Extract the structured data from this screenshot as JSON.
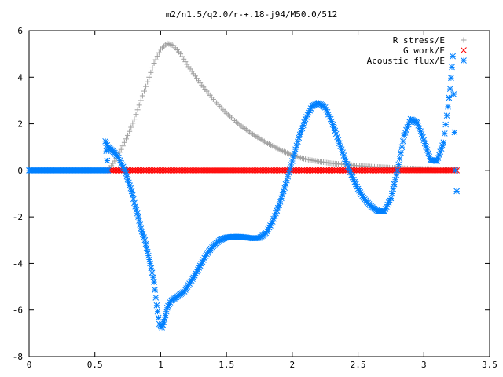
{
  "chart_data": {
    "type": "scatter",
    "title": "m2/n1.5/q2.0/r-+.18-j94/M50.0/512",
    "xlabel": "",
    "ylabel": "",
    "xlim": [
      0,
      3.5
    ],
    "ylim": [
      -8,
      6
    ],
    "xticks": [
      0,
      0.5,
      1,
      1.5,
      2,
      2.5,
      3,
      3.5
    ],
    "xtick_labels": [
      "0",
      "0.5",
      "1",
      "1.5",
      "2",
      "2.5",
      "3",
      "3.5"
    ],
    "yticks": [
      -8,
      -6,
      -4,
      -2,
      0,
      2,
      4,
      6
    ],
    "ytick_labels": [
      "-8",
      "-6",
      "-4",
      "-2",
      "0",
      "2",
      "4",
      "6"
    ],
    "grid": false,
    "legend_position": "top-right",
    "series": [
      {
        "name": "R stress/E",
        "marker": "plus",
        "color": "#a0a0a0",
        "x_range": [
          0.6,
          3.25
        ],
        "points": [
          [
            0.6,
            0.0
          ],
          [
            0.65,
            0.4
          ],
          [
            0.7,
            0.9
          ],
          [
            0.75,
            1.5
          ],
          [
            0.8,
            2.2
          ],
          [
            0.85,
            3.0
          ],
          [
            0.9,
            3.8
          ],
          [
            0.95,
            4.6
          ],
          [
            1.0,
            5.2
          ],
          [
            1.05,
            5.45
          ],
          [
            1.1,
            5.35
          ],
          [
            1.15,
            5.0
          ],
          [
            1.2,
            4.55
          ],
          [
            1.3,
            3.75
          ],
          [
            1.4,
            3.05
          ],
          [
            1.5,
            2.45
          ],
          [
            1.6,
            1.95
          ],
          [
            1.7,
            1.55
          ],
          [
            1.8,
            1.2
          ],
          [
            1.9,
            0.9
          ],
          [
            2.0,
            0.65
          ],
          [
            2.1,
            0.48
          ],
          [
            2.2,
            0.38
          ],
          [
            2.3,
            0.3
          ],
          [
            2.4,
            0.25
          ],
          [
            2.5,
            0.2
          ],
          [
            2.6,
            0.16
          ],
          [
            2.7,
            0.13
          ],
          [
            2.8,
            0.1
          ],
          [
            2.9,
            0.08
          ],
          [
            3.0,
            0.06
          ],
          [
            3.1,
            0.05
          ],
          [
            3.2,
            0.04
          ],
          [
            3.25,
            0.03
          ]
        ]
      },
      {
        "name": "G work/E",
        "marker": "cross",
        "color": "#ff0000",
        "x_range": [
          0.6,
          3.25
        ],
        "points": [
          [
            0.6,
            0.0
          ],
          [
            3.25,
            0.0
          ]
        ]
      },
      {
        "name": "Acoustic flux/E",
        "marker": "star",
        "color": "#0080ff",
        "x_range": [
          0,
          3.25
        ],
        "points": [
          [
            0.0,
            0.0
          ],
          [
            0.6,
            0.0
          ],
          [
            0.58,
            1.25
          ],
          [
            0.6,
            1.0
          ],
          [
            0.62,
            0.9
          ],
          [
            0.65,
            0.75
          ],
          [
            0.68,
            0.55
          ],
          [
            0.7,
            0.3
          ],
          [
            0.73,
            0.0
          ],
          [
            0.75,
            -0.4
          ],
          [
            0.78,
            -0.9
          ],
          [
            0.8,
            -1.4
          ],
          [
            0.83,
            -2.0
          ],
          [
            0.85,
            -2.5
          ],
          [
            0.88,
            -3.0
          ],
          [
            0.9,
            -3.5
          ],
          [
            0.92,
            -4.0
          ],
          [
            0.95,
            -4.8
          ],
          [
            0.97,
            -5.8
          ],
          [
            0.99,
            -6.6
          ],
          [
            1.01,
            -6.75
          ],
          [
            1.03,
            -6.4
          ],
          [
            1.05,
            -5.9
          ],
          [
            1.08,
            -5.6
          ],
          [
            1.12,
            -5.45
          ],
          [
            1.18,
            -5.2
          ],
          [
            1.25,
            -4.6
          ],
          [
            1.3,
            -4.1
          ],
          [
            1.35,
            -3.6
          ],
          [
            1.4,
            -3.25
          ],
          [
            1.45,
            -3.0
          ],
          [
            1.5,
            -2.88
          ],
          [
            1.55,
            -2.85
          ],
          [
            1.6,
            -2.85
          ],
          [
            1.65,
            -2.88
          ],
          [
            1.7,
            -2.92
          ],
          [
            1.75,
            -2.9
          ],
          [
            1.8,
            -2.7
          ],
          [
            1.85,
            -2.2
          ],
          [
            1.9,
            -1.5
          ],
          [
            1.95,
            -0.6
          ],
          [
            2.0,
            0.4
          ],
          [
            2.05,
            1.4
          ],
          [
            2.1,
            2.2
          ],
          [
            2.15,
            2.75
          ],
          [
            2.2,
            2.9
          ],
          [
            2.25,
            2.7
          ],
          [
            2.3,
            2.1
          ],
          [
            2.35,
            1.3
          ],
          [
            2.4,
            0.5
          ],
          [
            2.45,
            -0.2
          ],
          [
            2.5,
            -0.8
          ],
          [
            2.55,
            -1.25
          ],
          [
            2.6,
            -1.55
          ],
          [
            2.65,
            -1.75
          ],
          [
            2.7,
            -1.75
          ],
          [
            2.75,
            -1.2
          ],
          [
            2.8,
            0.0
          ],
          [
            2.85,
            1.5
          ],
          [
            2.9,
            2.2
          ],
          [
            2.95,
            2.05
          ],
          [
            3.0,
            1.3
          ],
          [
            3.05,
            0.45
          ],
          [
            3.1,
            0.4
          ],
          [
            3.15,
            1.2
          ],
          [
            3.2,
            3.5
          ],
          [
            3.22,
            4.9
          ],
          [
            3.24,
            0.0
          ],
          [
            3.25,
            -0.9
          ]
        ]
      }
    ]
  }
}
